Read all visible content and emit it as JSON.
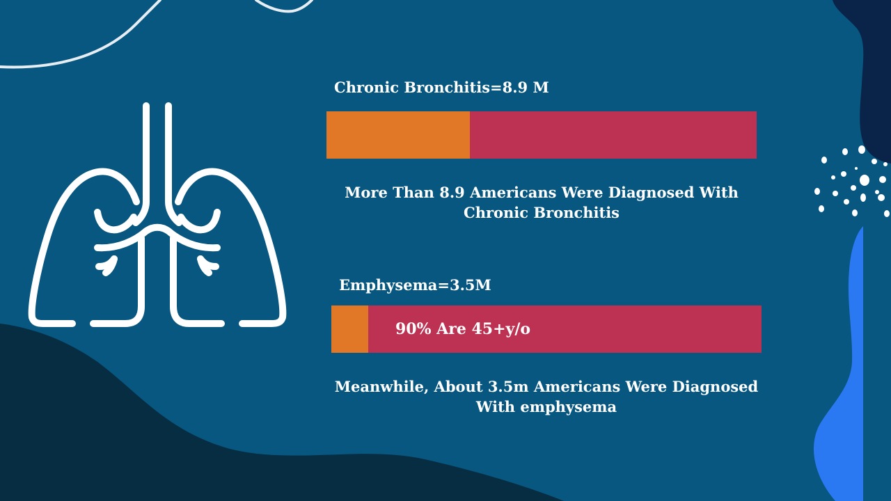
{
  "colors": {
    "background": "#075780",
    "dark_blob": "#062d42",
    "navy_blob": "#0a2449",
    "bright_blue_blob": "#2b79f2",
    "bar_fill": "#e07828",
    "bar_track": "#bd3153",
    "text": "#ffffff",
    "lung_icon": "#ffffff"
  },
  "icons": {
    "lungs": "lungs-icon"
  },
  "bronchitis": {
    "label": "Chronic Bronchitis=8.9 M",
    "fill_fraction": 0.334,
    "caption_line1": "More Than 8.9 Americans Were Diagnosed With",
    "caption_line2": "Chronic Bronchitis"
  },
  "emphysema": {
    "label": "Emphysema=3.5M",
    "fill_fraction": 0.085,
    "bar_text": "90% Are 45+y/o",
    "caption_line1": "Meanwhile, About 3.5m Americans Were Diagnosed",
    "caption_line2": "With emphysema"
  }
}
